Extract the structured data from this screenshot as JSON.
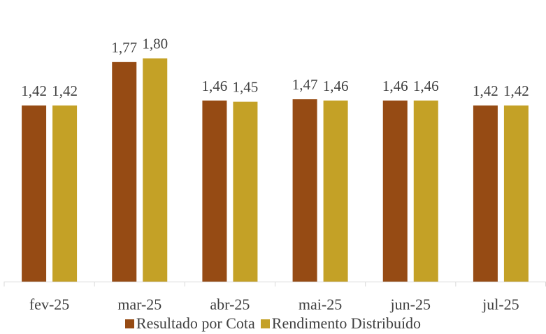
{
  "chart_data": {
    "type": "bar",
    "categories": [
      "fev-25",
      "mar-25",
      "abr-25",
      "mai-25",
      "jun-25",
      "jul-25"
    ],
    "series": [
      {
        "name": "Resultado por Cota",
        "values": [
          1.42,
          1.77,
          1.46,
          1.47,
          1.46,
          1.42
        ],
        "labels": [
          "1,42",
          "1,77",
          "1,46",
          "1,47",
          "1,46",
          "1,42"
        ],
        "color": "#964B14"
      },
      {
        "name": "Rendimento Distribuído",
        "values": [
          1.42,
          1.8,
          1.45,
          1.46,
          1.46,
          1.42
        ],
        "labels": [
          "1,42",
          "1,80",
          "1,45",
          "1,46",
          "1,46",
          "1,42"
        ],
        "color": "#C4A126"
      }
    ],
    "ylim": [
      0,
      2.0
    ],
    "grid": false,
    "legend_position": "bottom",
    "axis_color": "#D9D9D9"
  }
}
